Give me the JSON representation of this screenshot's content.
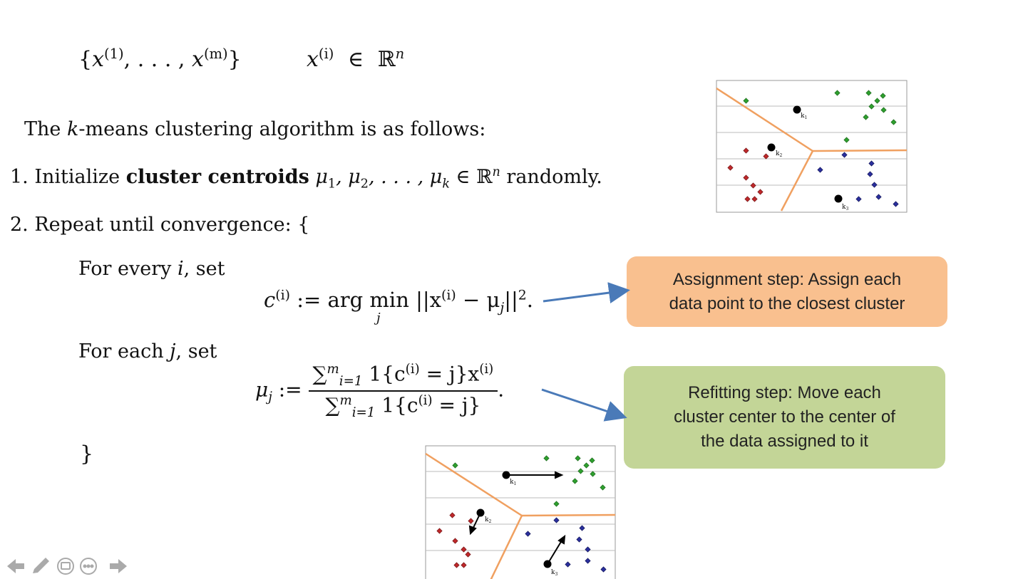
{
  "header": {
    "set_open": "{",
    "set_x": "x",
    "set_sup1": "(1)",
    "set_mid": ", . . . , ",
    "set_x2": "x",
    "set_supm": "(m)",
    "set_close": "}",
    "member_x": "x",
    "member_sup": "(i)",
    "member_in": "∈",
    "member_R": "ℝ",
    "member_n": "n"
  },
  "intro": {
    "prefix": "The ",
    "k": "k",
    "suffix": "-means clustering algorithm is as follows:"
  },
  "step1": {
    "num": "1. Initialize ",
    "bold": "cluster centroids",
    "mu": " μ",
    "s1": "1",
    "c1": ", μ",
    "s2": "2",
    "c2": ", . . . , μ",
    "sk": "k",
    "in": " ∈ ℝ",
    "n": "n",
    "end": " randomly."
  },
  "step2": {
    "text": "2. Repeat until convergence: {"
  },
  "for_every": {
    "text": "For every ",
    "var": "i",
    "end": ", set"
  },
  "eq1": {
    "lhs": "c",
    "lhs_sup": "(i)",
    "assign": " := arg min ",
    "sub": "j",
    "body": "||x",
    "body_sup": "(i)",
    "minus": " − μ",
    "mu_sub": "j",
    "norm": "||",
    "sq": "2",
    "dot": "."
  },
  "for_each": {
    "text": "For each ",
    "var": "j",
    "end": ", set"
  },
  "eq2": {
    "lhs": "μ",
    "lhs_sub": "j",
    "assign": " := ",
    "num": "∑",
    "num_sup": "m",
    "num_sub": "i=1",
    "num_body": " 1{c",
    "num_csup": "(i)",
    "num_eq": " = j}x",
    "num_xsup": "(i)",
    "den": "∑",
    "den_sup": "m",
    "den_sub": "i=1",
    "den_body": " 1{c",
    "den_csup": "(i)",
    "den_eq": " = j}",
    "dot": "."
  },
  "close_brace": "}",
  "callouts": {
    "assign_line1": "Assignment step: Assign each",
    "assign_line2": "data point to the closest cluster",
    "refit_line1": "Refitting step: Move each",
    "refit_line2": "cluster center to the center of",
    "refit_line3": "the data assigned to it"
  },
  "charts": {
    "labels": [
      "k1",
      "k2",
      "k3"
    ],
    "colors": {
      "green": "#2ea02e",
      "red": "#c0282a",
      "blue": "#2a2f9e",
      "boundary": "#f0a060",
      "arrow": "#4a7ab8"
    }
  },
  "nav": {
    "icons": [
      "back-arrow-icon",
      "pen-icon",
      "slides-icon",
      "more-icon",
      "forward-arrow-icon"
    ]
  }
}
